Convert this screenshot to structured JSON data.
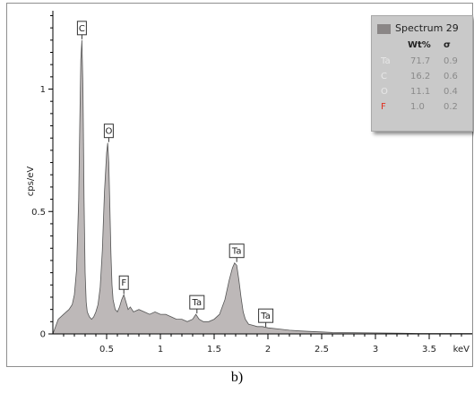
{
  "chart_data": {
    "type": "area",
    "ylabel": "cps/eV",
    "xlabel": "keV",
    "x_ticks": [
      "0.5",
      "1",
      "1.5",
      "2",
      "2.5",
      "3",
      "3.5"
    ],
    "y_ticks": [
      "0",
      "0.5",
      "1"
    ],
    "xlim": [
      0.0,
      3.9
    ],
    "ylim": [
      0,
      1.32
    ],
    "fill_color": "#bdb8b8",
    "series": [
      {
        "x": [
          0.0,
          0.05,
          0.1,
          0.15,
          0.18,
          0.2,
          0.22,
          0.24,
          0.25,
          0.26,
          0.27,
          0.28,
          0.29,
          0.3,
          0.31,
          0.32,
          0.34,
          0.36,
          0.38,
          0.4,
          0.42,
          0.44,
          0.46,
          0.48,
          0.5,
          0.51,
          0.52,
          0.53,
          0.54,
          0.55,
          0.56,
          0.58,
          0.6,
          0.62,
          0.64,
          0.66,
          0.68,
          0.7,
          0.72,
          0.75,
          0.8,
          0.85,
          0.9,
          0.95,
          1.0,
          1.05,
          1.1,
          1.15,
          1.2,
          1.25,
          1.3,
          1.33,
          1.36,
          1.4,
          1.45,
          1.5,
          1.55,
          1.6,
          1.64,
          1.67,
          1.69,
          1.71,
          1.73,
          1.75,
          1.77,
          1.79,
          1.82,
          1.86,
          1.9,
          1.95,
          2.0,
          2.1,
          2.2,
          2.3,
          2.4,
          2.5,
          2.6,
          2.8,
          3.0,
          3.2,
          3.4,
          3.6,
          3.9
        ],
        "values": [
          0.0,
          0.06,
          0.08,
          0.1,
          0.12,
          0.16,
          0.26,
          0.55,
          0.85,
          1.12,
          1.2,
          1.0,
          0.55,
          0.25,
          0.13,
          0.09,
          0.07,
          0.06,
          0.07,
          0.09,
          0.12,
          0.19,
          0.34,
          0.58,
          0.74,
          0.78,
          0.7,
          0.52,
          0.33,
          0.2,
          0.14,
          0.1,
          0.09,
          0.11,
          0.14,
          0.16,
          0.13,
          0.1,
          0.11,
          0.09,
          0.1,
          0.09,
          0.08,
          0.09,
          0.08,
          0.08,
          0.07,
          0.06,
          0.06,
          0.05,
          0.06,
          0.08,
          0.06,
          0.05,
          0.05,
          0.06,
          0.08,
          0.14,
          0.22,
          0.27,
          0.29,
          0.28,
          0.22,
          0.15,
          0.09,
          0.06,
          0.04,
          0.035,
          0.03,
          0.03,
          0.025,
          0.02,
          0.015,
          0.012,
          0.01,
          0.008,
          0.006,
          0.005,
          0.004,
          0.003,
          0.002,
          0.002,
          0.002
        ]
      }
    ],
    "peak_labels": [
      {
        "text": "C",
        "x": 0.27,
        "y": 1.2
      },
      {
        "text": "O",
        "x": 0.52,
        "y": 0.78
      },
      {
        "text": "F",
        "x": 0.66,
        "y": 0.16
      },
      {
        "text": "Ta",
        "x": 1.34,
        "y": 0.08
      },
      {
        "text": "Ta",
        "x": 1.71,
        "y": 0.29
      },
      {
        "text": "Ta",
        "x": 1.98,
        "y": 0.025
      }
    ]
  },
  "legend": {
    "title": "Spectrum 29",
    "swatch_color": "#8a8686",
    "headers": {
      "wt": "Wt%",
      "sigma": "σ"
    },
    "rows": [
      {
        "element": "Ta",
        "wt": "71.7",
        "sigma": "0.9",
        "color": "#e8e8e8"
      },
      {
        "element": "C",
        "wt": "16.2",
        "sigma": "0.6",
        "color": "#e8e8e8"
      },
      {
        "element": "O",
        "wt": "11.1",
        "sigma": "0.4",
        "color": "#e8e8e8"
      },
      {
        "element": "F",
        "wt": "1.0",
        "sigma": "0.2",
        "color": "#e03020"
      }
    ]
  },
  "caption": "b)"
}
